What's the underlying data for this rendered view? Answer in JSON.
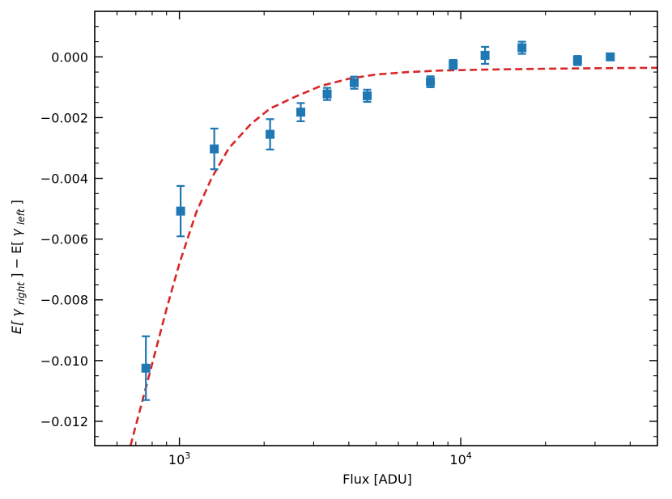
{
  "chart_data": {
    "type": "scatter",
    "title": "",
    "xlabel": "Flux [ADU]",
    "ylabel_parts": {
      "e1": "E[",
      "gamma1": "γ",
      "sub1": "right",
      "mid": "] − E[",
      "gamma2": "γ",
      "sub2": "left",
      "end": "]"
    },
    "x_scale": "log",
    "xlim": [
      500,
      50000
    ],
    "ylim": [
      -0.0128,
      0.0015
    ],
    "x_ticks": [
      {
        "value": 1000,
        "base": "10",
        "exp": "3"
      },
      {
        "value": 10000,
        "base": "10",
        "exp": "4"
      }
    ],
    "y_ticks": [
      {
        "value": 0.0,
        "label": "0.000"
      },
      {
        "value": -0.002,
        "label": "−0.002"
      },
      {
        "value": -0.004,
        "label": "−0.004"
      },
      {
        "value": -0.006,
        "label": "−0.006"
      },
      {
        "value": -0.008,
        "label": "−0.008"
      },
      {
        "value": -0.01,
        "label": "−0.010"
      },
      {
        "value": -0.012,
        "label": "−0.012"
      }
    ],
    "grid": false,
    "series": [
      {
        "type": "errorbar",
        "marker": "square",
        "color": "#1f77b4",
        "points": [
          {
            "x": 760,
            "y": -0.01025,
            "err": 0.00105
          },
          {
            "x": 1010,
            "y": -0.00508,
            "err": 0.00083
          },
          {
            "x": 1330,
            "y": -0.00303,
            "err": 0.00067
          },
          {
            "x": 2100,
            "y": -0.00255,
            "err": 0.0005
          },
          {
            "x": 2700,
            "y": -0.00182,
            "err": 0.0003
          },
          {
            "x": 3350,
            "y": -0.00122,
            "err": 0.0002
          },
          {
            "x": 4180,
            "y": -0.00085,
            "err": 0.0002
          },
          {
            "x": 4650,
            "y": -0.00128,
            "err": 0.0002
          },
          {
            "x": 7800,
            "y": -0.00082,
            "err": 0.00018
          },
          {
            "x": 9400,
            "y": -0.00025,
            "err": 0.00015
          },
          {
            "x": 12200,
            "y": 5e-05,
            "err": 0.00028
          },
          {
            "x": 16500,
            "y": 0.0003,
            "err": 0.0002
          },
          {
            "x": 26000,
            "y": -0.00012,
            "err": 0.00015
          },
          {
            "x": 34000,
            "y": 0.0,
            "err": 0.0001
          }
        ]
      },
      {
        "type": "line",
        "style": "dashed",
        "color": "#d62728",
        "points": [
          {
            "x": 670,
            "y": -0.0128
          },
          {
            "x": 780,
            "y": -0.0105
          },
          {
            "x": 900,
            "y": -0.0083
          },
          {
            "x": 1000,
            "y": -0.0068
          },
          {
            "x": 1150,
            "y": -0.0051
          },
          {
            "x": 1300,
            "y": -0.004
          },
          {
            "x": 1500,
            "y": -0.003
          },
          {
            "x": 1800,
            "y": -0.0022
          },
          {
            "x": 2100,
            "y": -0.0017
          },
          {
            "x": 2600,
            "y": -0.0013
          },
          {
            "x": 3200,
            "y": -0.00095
          },
          {
            "x": 4000,
            "y": -0.00072
          },
          {
            "x": 5000,
            "y": -0.00058
          },
          {
            "x": 6500,
            "y": -0.0005
          },
          {
            "x": 8500,
            "y": -0.00045
          },
          {
            "x": 12000,
            "y": -0.00042
          },
          {
            "x": 20000,
            "y": -0.00039
          },
          {
            "x": 35000,
            "y": -0.00037
          },
          {
            "x": 50000,
            "y": -0.00036
          }
        ]
      }
    ]
  }
}
